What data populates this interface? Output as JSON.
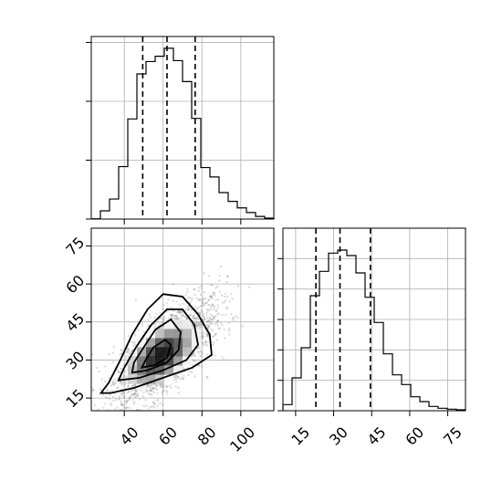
{
  "chart_data": {
    "type": "corner",
    "params": [
      {
        "name": "x",
        "range": [
          23,
          117
        ],
        "ticks": [
          40,
          60,
          80,
          100
        ]
      },
      {
        "name": "y",
        "range": [
          10,
          82
        ],
        "ticks": [
          15,
          30,
          45,
          60,
          75
        ]
      }
    ],
    "marginal_x": {
      "type": "histogram",
      "bin_edges": [
        23,
        27.7,
        32.4,
        37.1,
        41.8,
        46.5,
        51.2,
        55.9,
        60.6,
        65.3,
        70,
        74.7,
        79.4,
        84.1,
        88.8,
        93.5,
        98.2,
        102.9,
        107.6,
        112.3,
        117
      ],
      "counts": [
        1,
        28,
        68,
        178,
        340,
        493,
        535,
        553,
        580,
        538,
        467,
        342,
        175,
        143,
        90,
        60,
        38,
        22,
        9,
        3
      ],
      "quantiles": [
        49.5,
        62.0,
        76.5
      ],
      "ylim": [
        0,
        620
      ],
      "yticks": [
        0,
        200,
        400,
        600
      ],
      "grid": true
    },
    "marginal_y": {
      "type": "histogram",
      "bin_edges": [
        10,
        13.6,
        17.2,
        20.8,
        24.4,
        28,
        31.6,
        35.2,
        38.8,
        42.4,
        46,
        49.6,
        53.2,
        56.8,
        60.4,
        64,
        67.6,
        71.2,
        74.8,
        78.4,
        82
      ],
      "counts": [
        20,
        108,
        207,
        378,
        458,
        518,
        528,
        510,
        453,
        373,
        290,
        187,
        118,
        86,
        46,
        30,
        14,
        8,
        5,
        3
      ],
      "quantiles": [
        23.0,
        32.5,
        44.5
      ],
      "ylim": [
        0,
        600
      ],
      "yticks": [
        0,
        100,
        200,
        300,
        400,
        500
      ],
      "grid": true
    },
    "joint": {
      "type": "2d-histogram-contour",
      "xlim": [
        23,
        117
      ],
      "ylim": [
        10,
        82
      ],
      "density_center": [
        57,
        31
      ],
      "contour_levels": [
        0.5,
        1.0,
        1.5,
        2.0
      ],
      "grid": true
    }
  }
}
